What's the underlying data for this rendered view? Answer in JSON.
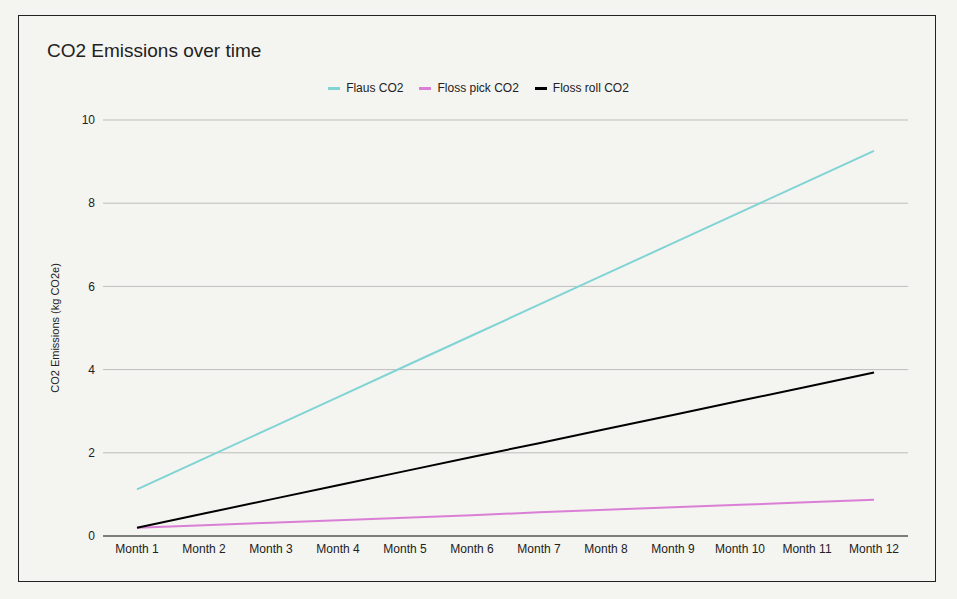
{
  "chart_data": {
    "type": "line",
    "title": "CO2 Emissions over time",
    "y_label": "CO2 Emissions (kg CO2e)",
    "categories": [
      "Month 1",
      "Month 2",
      "Month 3",
      "Month 4",
      "Month 5",
      "Month 6",
      "Month 7",
      "Month 8",
      "Month 9",
      "Month 10",
      "Month 11",
      "Month 12"
    ],
    "series": [
      {
        "name": "Flaus CO2",
        "color": "#80d4d4",
        "values": [
          1.12,
          1.86,
          2.6,
          3.34,
          4.08,
          4.82,
          5.56,
          6.3,
          7.04,
          7.78,
          8.52,
          9.26
        ]
      },
      {
        "name": "Floss pick CO2",
        "color": "#da7fd6",
        "values": [
          0.2,
          0.26,
          0.32,
          0.38,
          0.44,
          0.5,
          0.57,
          0.63,
          0.69,
          0.75,
          0.81,
          0.87
        ]
      },
      {
        "name": "Floss roll CO2",
        "color": "#000000",
        "values": [
          0.2,
          0.54,
          0.88,
          1.22,
          1.56,
          1.9,
          2.23,
          2.57,
          2.91,
          3.25,
          3.59,
          3.93
        ]
      }
    ],
    "ylim": [
      0,
      10
    ],
    "yticks": [
      0,
      2,
      4,
      6,
      8,
      10
    ],
    "grid": true,
    "legend": "top"
  }
}
